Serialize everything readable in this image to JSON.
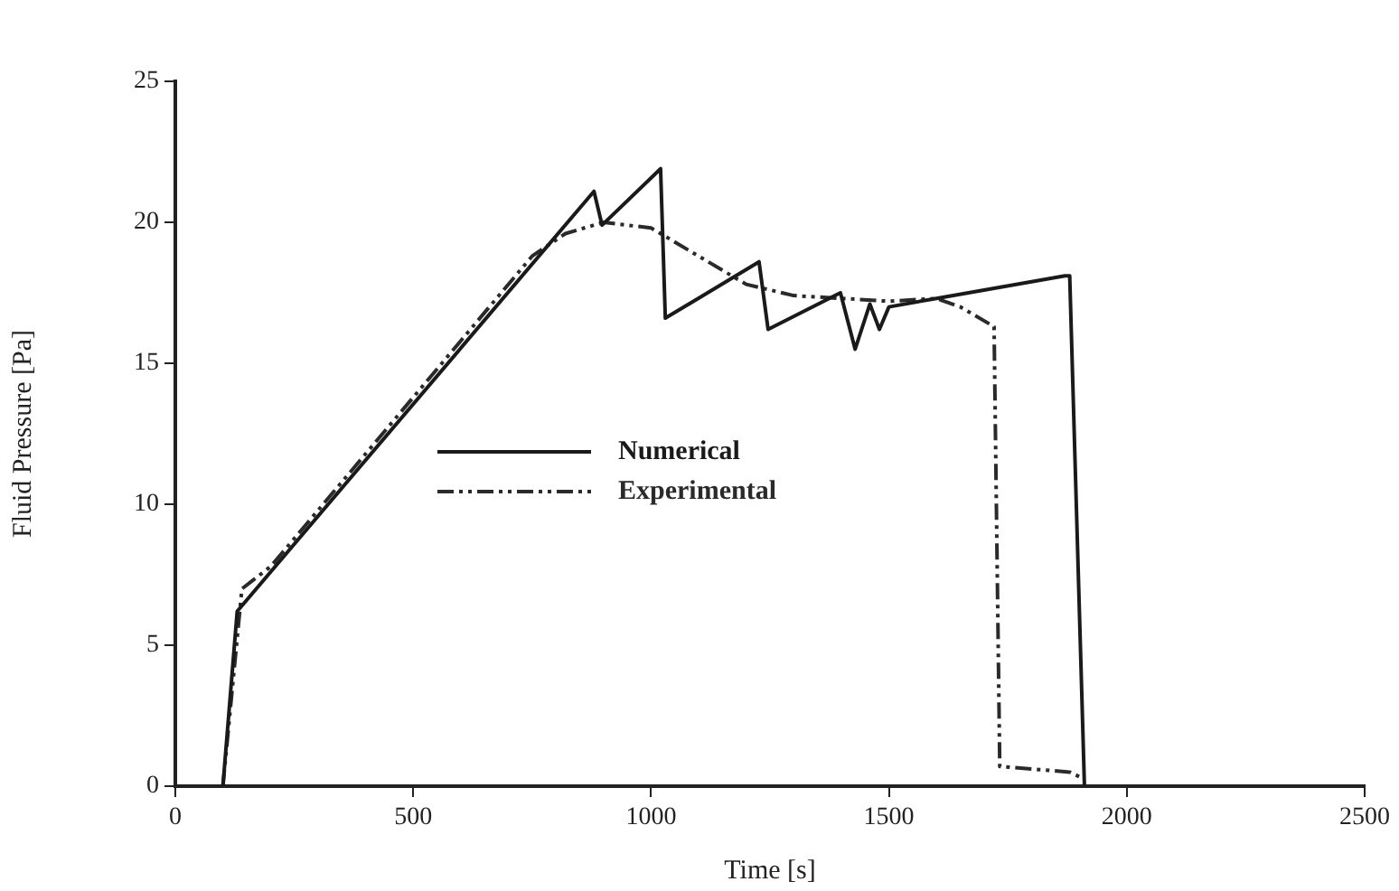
{
  "chart_data": {
    "type": "line",
    "xlabel": "Time [s]",
    "ylabel": "Fluid Pressure [Pa]",
    "xlim": [
      0,
      2500
    ],
    "xticks": [
      0,
      500,
      1000,
      1500,
      2000,
      2500
    ],
    "ylim": [
      0,
      25
    ],
    "yticks": [
      0,
      5,
      10,
      15,
      20,
      25
    ],
    "grid": false,
    "legend": "bottom left",
    "marker": "none",
    "series": [
      {
        "name": "Numerical",
        "color": "#1a1a1a",
        "line_style": "solid",
        "x": [
          100,
          130,
          880,
          897,
          1020,
          1030,
          1227,
          1246,
          1398,
          1429,
          1460,
          1480,
          1500,
          1600,
          1870,
          1880,
          1911
        ],
        "values": [
          0,
          6.2,
          21.1,
          19.9,
          21.9,
          16.6,
          18.6,
          16.2,
          17.5,
          15.5,
          17.1,
          16.2,
          17.0,
          17.3,
          18.1,
          18.1,
          0
        ]
      },
      {
        "name": "Experimental",
        "color": "#2a2a2a",
        "line_style": "dashed",
        "x": [
          100,
          140,
          201,
          750,
          820,
          900,
          1000,
          1100,
          1200,
          1300,
          1500,
          1600,
          1650,
          1721,
          1733,
          1880,
          1905
        ],
        "values": [
          0,
          7.0,
          7.8,
          18.8,
          19.6,
          20.0,
          19.8,
          18.8,
          17.8,
          17.4,
          17.2,
          17.3,
          17.0,
          16.3,
          0.7,
          0.5,
          0.3
        ]
      }
    ]
  }
}
